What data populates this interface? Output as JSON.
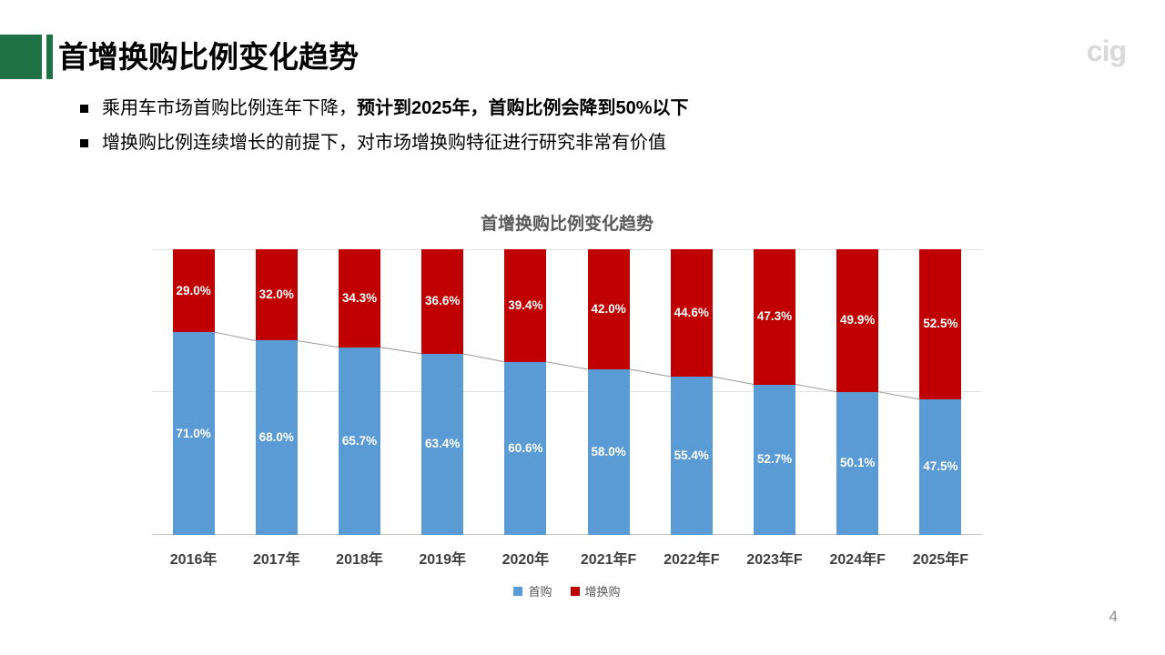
{
  "header": {
    "title": "首增换购比例变化趋势",
    "logo_text": "cig",
    "accent_color": "#1F7246"
  },
  "bullets": [
    {
      "normal": "乘用车市场首购比例连年下降，",
      "bold": "预计到2025年，首购比例会降到50%以下"
    },
    {
      "normal": "增换购比例连续增长的前提下，对市场增换购特征进行研究非常有价值",
      "bold": ""
    }
  ],
  "chart_data": {
    "type": "bar",
    "stacked": true,
    "title": "首增换购比例变化趋势",
    "categories": [
      "2016年",
      "2017年",
      "2018年",
      "2019年",
      "2020年",
      "2021年F",
      "2022年F",
      "2023年F",
      "2024年F",
      "2025年F"
    ],
    "series": [
      {
        "name": "首购",
        "color": "#5B9BD5",
        "values": [
          71.0,
          68.0,
          65.7,
          63.4,
          60.6,
          58.0,
          55.4,
          52.7,
          50.1,
          47.5
        ]
      },
      {
        "name": "增换购",
        "color": "#C00000",
        "values": [
          29.0,
          32.0,
          34.3,
          36.6,
          39.4,
          42.0,
          44.6,
          47.3,
          49.9,
          52.5
        ]
      }
    ],
    "value_label_format": "percent_1dp",
    "ylim": [
      0,
      100
    ],
    "gridlines_percent": [
      100,
      50,
      0
    ],
    "grid_color": "#e2e2e2",
    "axis_color": "#c9c9c9",
    "connector_color": "#999999",
    "legend_position": "bottom"
  },
  "footer": {
    "page_number": "4"
  }
}
